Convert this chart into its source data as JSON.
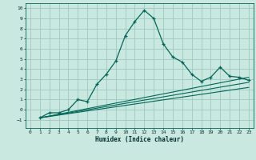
{
  "bg_color": "#c8e8e0",
  "grid_color": "#a0c8c0",
  "line_color": "#006858",
  "xlabel": "Humidex (Indice chaleur)",
  "xlim": [
    -0.5,
    23.5
  ],
  "ylim": [
    -1.8,
    10.5
  ],
  "yticks": [
    -1,
    0,
    1,
    2,
    3,
    4,
    5,
    6,
    7,
    8,
    9,
    10
  ],
  "xticks": [
    0,
    1,
    2,
    3,
    4,
    5,
    6,
    7,
    8,
    9,
    10,
    11,
    12,
    13,
    14,
    15,
    16,
    17,
    18,
    19,
    20,
    21,
    22,
    23
  ],
  "curve1_x": [
    1,
    2,
    3,
    4,
    5,
    6,
    7,
    8,
    9,
    10,
    11,
    12,
    13,
    14,
    15,
    16,
    17,
    18,
    19,
    20,
    21,
    22,
    23
  ],
  "curve1_y": [
    -0.8,
    -0.3,
    -0.3,
    0.0,
    1.0,
    0.8,
    2.5,
    3.5,
    4.8,
    7.3,
    8.7,
    9.8,
    9.0,
    6.5,
    5.2,
    4.7,
    3.5,
    2.8,
    3.2,
    4.2,
    3.3,
    3.2,
    2.9
  ],
  "line2_x": [
    1,
    23
  ],
  "line2_y": [
    -0.8,
    3.2
  ],
  "line3_x": [
    1,
    23
  ],
  "line3_y": [
    -0.8,
    2.7
  ],
  "line4_x": [
    1,
    23
  ],
  "line4_y": [
    -0.8,
    2.2
  ]
}
